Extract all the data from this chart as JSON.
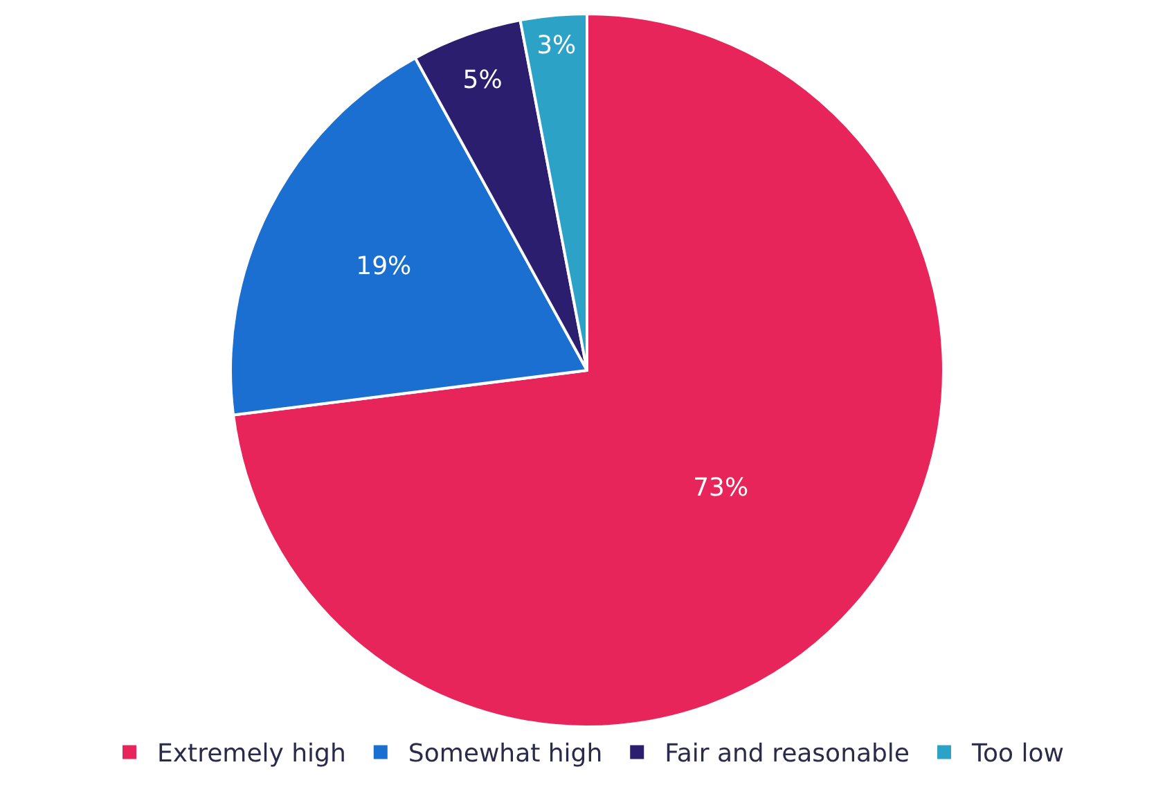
{
  "chart_data": {
    "type": "pie",
    "categories": [
      "Extremely high",
      "Somewhat high",
      "Fair and reasonable",
      "Too low"
    ],
    "values": [
      73,
      19,
      5,
      3
    ],
    "colors": [
      "#e8255a",
      "#1a6fd0",
      "#2b1e6e",
      "#2ba2c6"
    ],
    "value_labels": [
      "73%",
      "19%",
      "5%",
      "3%"
    ],
    "legend": "bottom"
  }
}
